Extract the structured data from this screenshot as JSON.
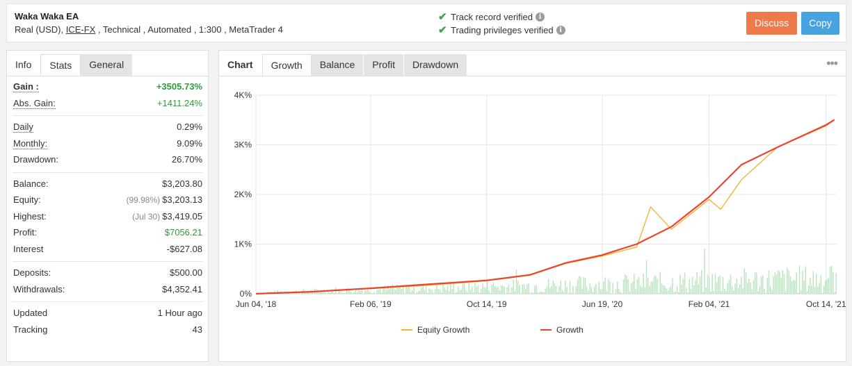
{
  "account": {
    "name": "Waka Waka EA",
    "desc_prefix": "Real (USD), ",
    "broker": "ICE-FX",
    "desc_suffix": " , Technical , Automated , 1:300 , MetaTrader 4"
  },
  "verification": {
    "track_record": "Track record verified",
    "trading_privileges": "Trading privileges verified"
  },
  "buttons": {
    "discuss": "Discuss",
    "copy": "Copy"
  },
  "left_tabs": [
    "Info",
    "Stats",
    "General"
  ],
  "stats": {
    "gain_label": "Gain :",
    "gain": "+3505.73%",
    "abs_gain_label": "Abs. Gain:",
    "abs_gain": "+1411.24%",
    "daily_label": "Daily",
    "daily": "0.29%",
    "monthly_label": "Monthly:",
    "monthly": "9.09%",
    "drawdown_label": "Drawdown:",
    "drawdown": "26.70%",
    "balance_label": "Balance:",
    "balance": "$3,203.80",
    "equity_label": "Equity:",
    "equity_pct": "(99.98%)",
    "equity": "$3,203.13",
    "highest_label": "Highest:",
    "highest_date": "(Jul 30)",
    "highest": "$3,419.05",
    "profit_label": "Profit:",
    "profit": "$7056.21",
    "interest_label": "Interest",
    "interest": "-$627.08",
    "deposits_label": "Deposits:",
    "deposits": "$500.00",
    "withdrawals_label": "Withdrawals:",
    "withdrawals": "$4,352.41",
    "updated_label": "Updated",
    "updated": "1 Hour ago",
    "tracking_label": "Tracking",
    "tracking": "43"
  },
  "chart_tabs": [
    "Chart",
    "Growth",
    "Balance",
    "Profit",
    "Drawdown"
  ],
  "chart_menu": "•••",
  "colors": {
    "growth": "#e8452c",
    "equity": "#f5b335",
    "volume": "#b7e3bd",
    "green": "#2b9d3c",
    "discuss": "#ee7a4c",
    "copy": "#47a3e0"
  },
  "chart_data": {
    "type": "line",
    "x_tick_labels": [
      "Jun 04, '18",
      "Feb 06, '19",
      "Oct 14, '19",
      "Jun 19, '20",
      "Feb 04, '21",
      "Oct 14, '21"
    ],
    "y_tick_labels": [
      "0%",
      "1K%",
      "2K%",
      "3K%",
      "4K%"
    ],
    "ylim": [
      0,
      4000
    ],
    "grid": true,
    "legend_position": "bottom",
    "series": [
      {
        "name": "Growth",
        "x": [
          "Jun 04, '18",
          "Oct 01, '18",
          "Feb 06, '19",
          "Jun 10, '19",
          "Oct 14, '19",
          "Jan 15, '20",
          "Apr 01, '20",
          "Jun 19, '20",
          "Sep 01, '20",
          "Nov 15, '20",
          "Feb 04, '21",
          "Apr 15, '21",
          "Jul 01, '21",
          "Oct 14, '21",
          "Nov 01, '21"
        ],
        "values": [
          0,
          40,
          110,
          190,
          270,
          380,
          620,
          780,
          1000,
          1350,
          1950,
          2600,
          2950,
          3400,
          3505
        ]
      },
      {
        "name": "Equity Growth",
        "x": [
          "Jun 04, '18",
          "Oct 01, '18",
          "Feb 06, '19",
          "Jun 10, '19",
          "Oct 14, '19",
          "Jan 15, '20",
          "Apr 01, '20",
          "Jun 19, '20",
          "Sep 01, '20",
          "Oct 01, '20",
          "Nov 15, '20",
          "Feb 04, '21",
          "Mar 01, '21",
          "Apr 15, '21",
          "Jul 01, '21",
          "Oct 14, '21",
          "Nov 01, '21"
        ],
        "values": [
          0,
          40,
          105,
          170,
          260,
          370,
          610,
          760,
          940,
          1750,
          1300,
          1900,
          1700,
          2300,
          2950,
          3380,
          3505
        ]
      }
    ]
  }
}
